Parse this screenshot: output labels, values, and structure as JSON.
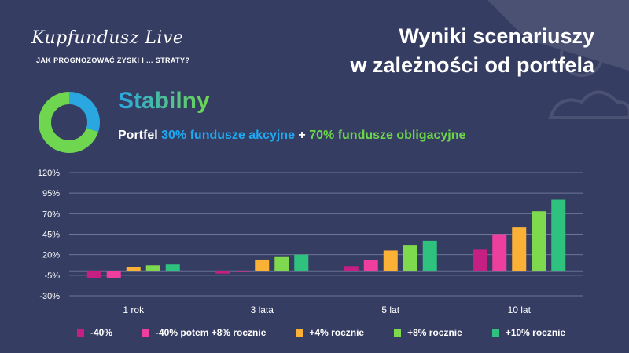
{
  "header": {
    "logo_text": "Kupfundusz Live",
    "tagline": "JAK PROGNOZOWAĆ ZYSKI I ... STRATY?",
    "title_line1": "Wyniki scenariuszy",
    "title_line2": "w zależności od portfela"
  },
  "profile": {
    "name": "Stabilny",
    "portfolio_prefix": "Portfel",
    "equity_part": "30% fundusze akcyjne",
    "plus": "+",
    "bond_part": "70% fundusze obligacyjne",
    "equity_share": 30,
    "bond_share": 70,
    "equity_color": "#2aa7e0",
    "bond_color": "#6ed64f"
  },
  "chart_data": {
    "type": "bar",
    "categories": [
      "1 rok",
      "3 lata",
      "5 lat",
      "10 lat"
    ],
    "y_ticks": [
      "120%",
      "95%",
      "70%",
      "45%",
      "20%",
      "-5%",
      "-30%"
    ],
    "ylim": [
      -30,
      120
    ],
    "grid": true,
    "legend_position": "bottom",
    "series": [
      {
        "name": "-40%",
        "color": "#c61f83",
        "values": [
          -8,
          -3,
          6,
          26
        ]
      },
      {
        "name": "-40% potem +8% rocznie",
        "color": "#ef3f9e",
        "values": [
          -8,
          -1,
          13,
          45
        ]
      },
      {
        "name": "+4% rocznie",
        "color": "#fbb136",
        "values": [
          5,
          14,
          25,
          53
        ]
      },
      {
        "name": "+8% rocznie",
        "color": "#7fd94e",
        "values": [
          7,
          18,
          32,
          73
        ]
      },
      {
        "name": "+10% rocznie",
        "color": "#2ec27e",
        "values": [
          8,
          20,
          37,
          87
        ]
      }
    ]
  }
}
